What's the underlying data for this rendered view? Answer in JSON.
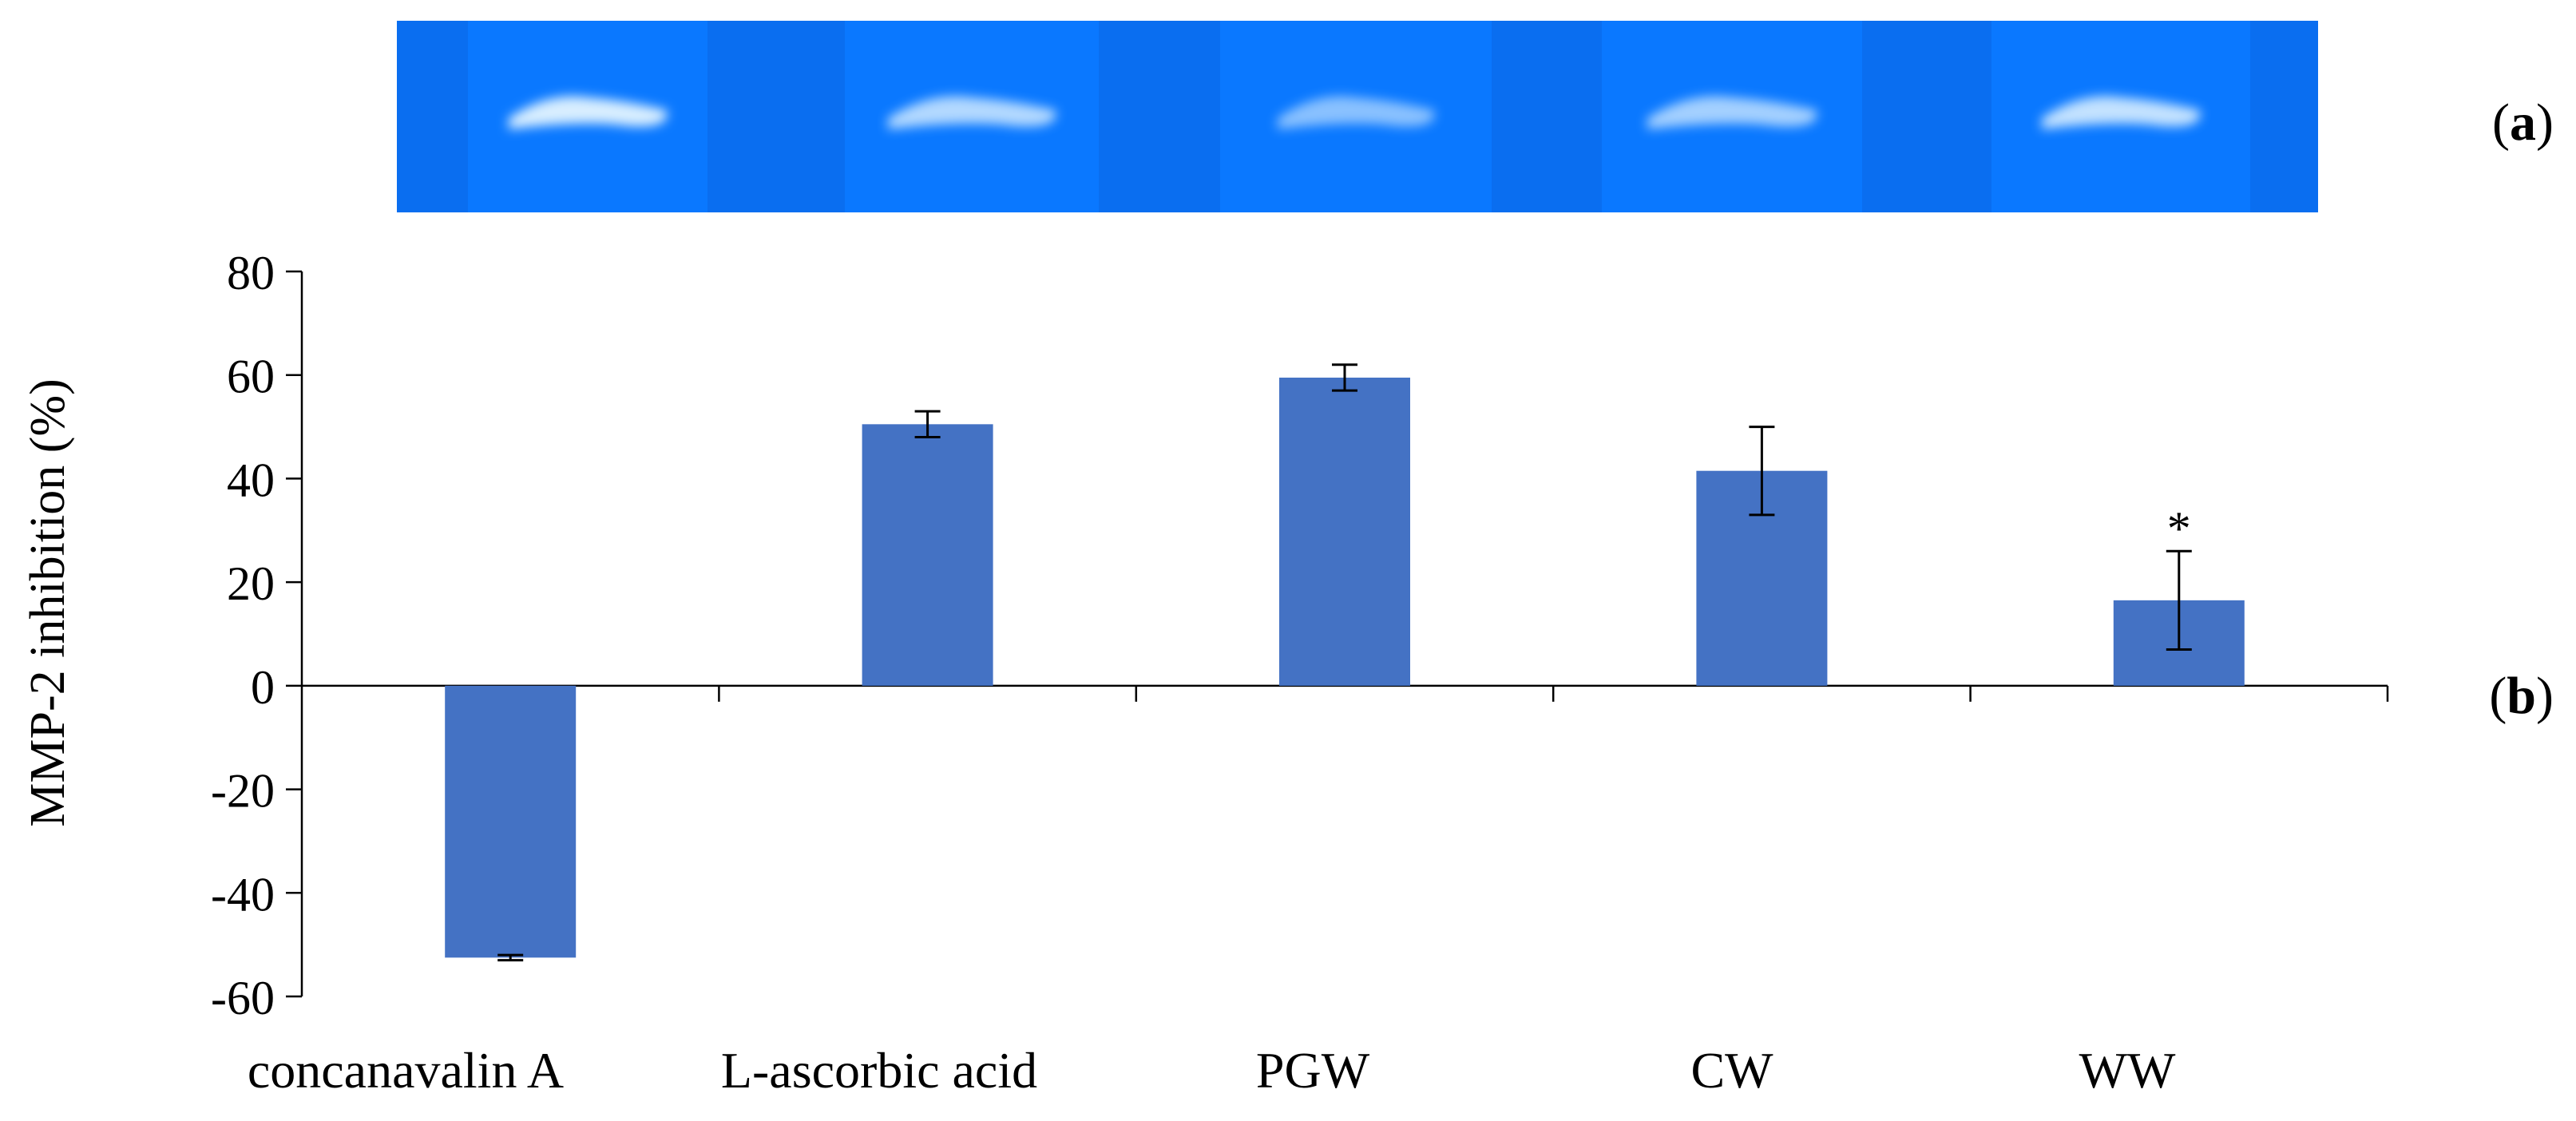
{
  "panels": {
    "a": "(a)",
    "b": "(b)"
  },
  "colors": {
    "bar": "#4472C4",
    "gel_background": "#0A6EF0",
    "gel_lane": "#0A78FF",
    "band": "#D8EEFF"
  },
  "chart_data": {
    "type": "bar",
    "title": "",
    "xlabel": "",
    "ylabel": "MMP-2 inhibition (%)",
    "ylim": [
      -60,
      80
    ],
    "yticks": [
      80,
      60,
      40,
      20,
      0,
      -20,
      -40,
      -60
    ],
    "ytick_labels": [
      "80",
      "60",
      "40",
      "20",
      "0",
      "-20",
      "-40",
      "-60"
    ],
    "categories": [
      "concanavalin A",
      "L-ascorbic acid",
      "PGW",
      "CW",
      "WW"
    ],
    "values": [
      -52.5,
      50.5,
      59.5,
      41.5,
      16.5
    ],
    "errors": [
      0.5,
      2.5,
      2.5,
      8.5,
      9.5
    ],
    "annotations": [
      {
        "category": "WW",
        "text": "*"
      }
    ],
    "grid": false,
    "legend": "none"
  },
  "gel": {
    "lanes": [
      "concanavalin A",
      "L-ascorbic acid",
      "PGW",
      "CW",
      "WW"
    ],
    "band_intensity": [
      1.0,
      0.82,
      0.62,
      0.75,
      0.9
    ]
  }
}
